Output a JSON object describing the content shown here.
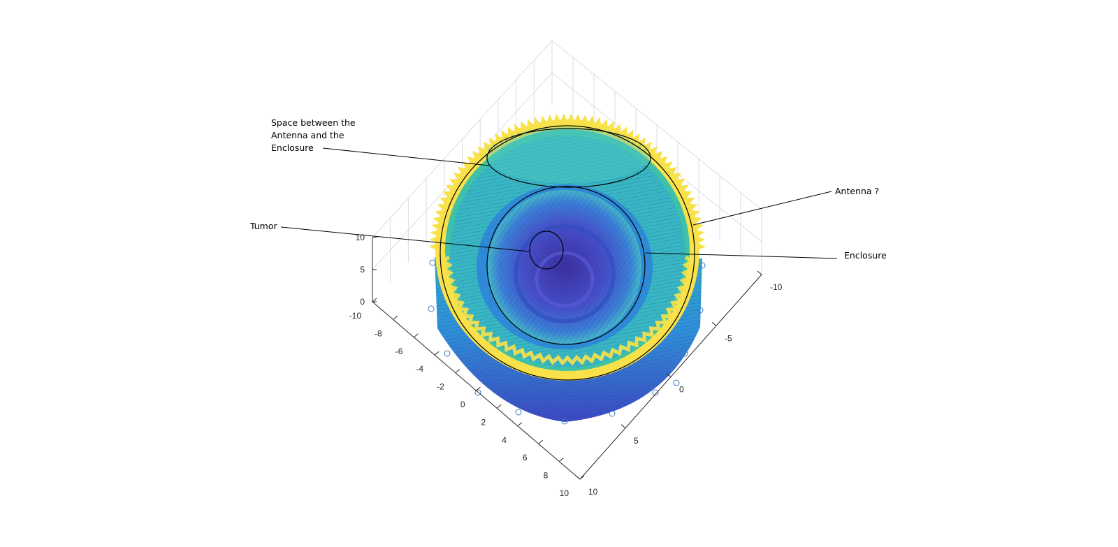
{
  "chart_data": {
    "type": "surface",
    "view": "3d-oblique",
    "colormap": "parula",
    "grid": true,
    "axes": {
      "x": {
        "range": [
          -10,
          10
        ],
        "ticks": [
          "-10",
          "-8",
          "-6",
          "-4",
          "-2",
          "0",
          "2",
          "4",
          "6",
          "8",
          "10"
        ]
      },
      "y": {
        "range": [
          -10,
          10
        ],
        "ticks": [
          "-10",
          "-5",
          "0",
          "5",
          "10"
        ]
      },
      "z": {
        "range": [
          0,
          10
        ],
        "ticks": [
          "0",
          "5",
          "10"
        ]
      }
    },
    "regions": [
      {
        "name": "Enclosure",
        "shape": "outer ring",
        "radius": 10
      },
      {
        "name": "Antenna ?",
        "shape": "ring",
        "radius": 9
      },
      {
        "name": "Space between the Antenna and the Enclosure",
        "shape": "annulus"
      },
      {
        "name": "Tumor",
        "shape": "small circle"
      }
    ],
    "annotations": [
      {
        "id": "space",
        "lines": [
          "Space between the",
          "Antenna and the",
          "Enclosure"
        ]
      },
      {
        "id": "antenna",
        "lines": [
          "Antenna ?"
        ]
      },
      {
        "id": "tumor",
        "lines": [
          "Tumor"
        ]
      },
      {
        "id": "enclosure",
        "lines": [
          "Enclosure"
        ]
      }
    ],
    "colors": {
      "ring_peak": "#f9e14a",
      "ring_mid": "#35b8a6",
      "wall": "#2f8fd8",
      "interior": "#4650c8",
      "interior_dark": "#3b2fa0",
      "grid": "#dcdcdc",
      "axis": "#262626"
    }
  }
}
